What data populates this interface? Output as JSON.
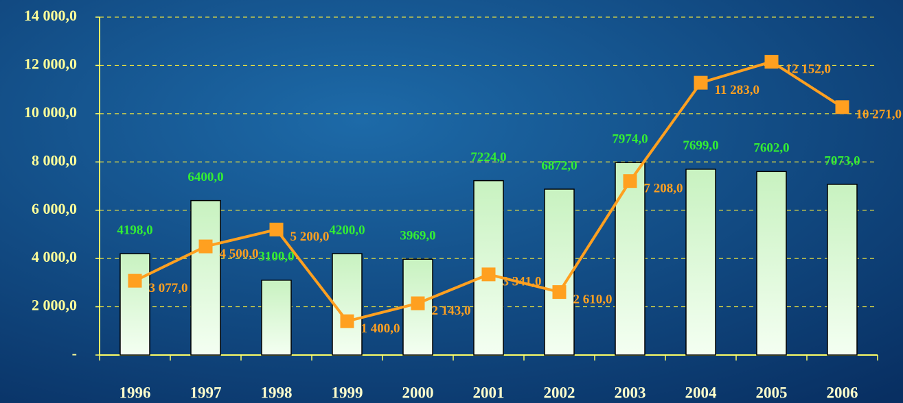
{
  "chart_data": {
    "type": "bar-line",
    "categories": [
      "1996",
      "1997",
      "1998",
      "1999",
      "2000",
      "2001",
      "2002",
      "2003",
      "2004",
      "2005",
      "2006"
    ],
    "series": [
      {
        "type": "bar",
        "color": "#ccf5c4",
        "values": [
          4198,
          6400,
          3100,
          4200,
          3969,
          7224,
          6872,
          7974,
          7699,
          7602,
          7073
        ],
        "value_labels": [
          "4198,0",
          "6400,0",
          "3100,0",
          "4200,0",
          "3969,0",
          "7224,0",
          "6872,0",
          "7974,0",
          "7699,0",
          "7602,0",
          "7073,0"
        ],
        "label_color": "#33ee33"
      },
      {
        "type": "line",
        "color": "#ffa020",
        "values": [
          3077,
          4500,
          5200,
          1400,
          2143,
          3341,
          2610,
          7208,
          11283,
          12152,
          10271
        ],
        "value_labels": [
          "3 077,0",
          "4 500,0",
          "5 200,0",
          "1 400,0",
          "2 143,0",
          "3 341,0",
          "2 610,0",
          "7 208,0",
          "11 283,0",
          "12 152,0",
          "10 271,0"
        ]
      }
    ],
    "ylim": [
      0,
      14000
    ],
    "yticks": [
      {
        "value": 0,
        "label": "-"
      },
      {
        "value": 2000,
        "label": "2 000,0"
      },
      {
        "value": 4000,
        "label": "4 000,0"
      },
      {
        "value": 6000,
        "label": "6 000,0"
      },
      {
        "value": 8000,
        "label": "8 000,0"
      },
      {
        "value": 10000,
        "label": "10 000,0"
      },
      {
        "value": 12000,
        "label": "12 000,0"
      },
      {
        "value": 14000,
        "label": "14 000,0"
      }
    ],
    "grid": true
  }
}
